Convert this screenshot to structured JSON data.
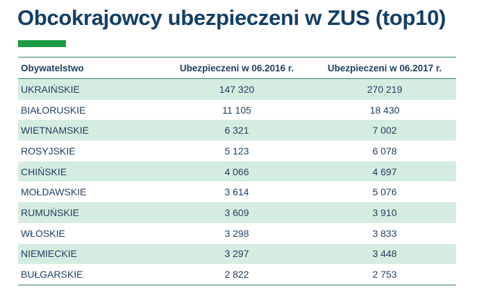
{
  "title": "Obcokrajowcy ubezpieczeni w ZUS (top10)",
  "colors": {
    "title": "#123e66",
    "accent_bar": "#1a9b40",
    "row_fill": "#d5ede0",
    "rule": "#2f7b6e"
  },
  "table": {
    "headers": [
      "Obywatelstwo",
      "Ubezpieczeni w 06.2016 r.",
      "Ubezpieczeni w 06.2017 r."
    ],
    "rows": [
      [
        "UKRAIŃSKIE",
        "147 320",
        "270 219"
      ],
      [
        "BIAŁORUSKIE",
        "11 105",
        "18 430"
      ],
      [
        "WIETNAMSKIE",
        "6 321",
        "7 002"
      ],
      [
        "ROSYJSKIE",
        "5 123",
        "6 078"
      ],
      [
        "CHIŃSKIE",
        "4 066",
        "4 697"
      ],
      [
        "MOŁDAWSKIE",
        "3 614",
        "5 076"
      ],
      [
        "RUMUŃSKIE",
        "3 609",
        "3 910"
      ],
      [
        "WŁOSKIE",
        "3 298",
        "3 833"
      ],
      [
        "NIEMIECKIE",
        "3 297",
        "3 448"
      ],
      [
        "BUŁGARSKIE",
        "2 822",
        "2 753"
      ]
    ]
  }
}
